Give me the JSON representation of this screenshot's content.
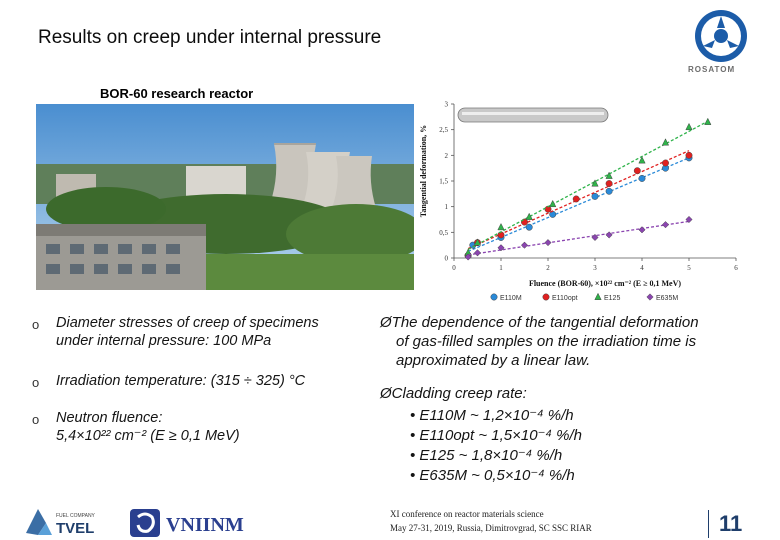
{
  "slide": {
    "title": "Results on creep under internal pressure",
    "logo_text": "ROSATOM",
    "photo_caption": "BOR-60 research reactor"
  },
  "bullets": [
    {
      "marker": "o",
      "lines": [
        "Diameter stresses of creep of specimens",
        "under internal pressure: 100 MPa"
      ]
    },
    {
      "marker": "o",
      "lines": [
        "Irradiation temperature: (315 ÷ 325) °C"
      ]
    },
    {
      "marker": "o",
      "lines": [
        "Neutron fluence:",
        "5,4×10²² cm⁻² (E ≥ 0,1 MeV)"
      ]
    }
  ],
  "right_text": {
    "dependence": [
      "ØThe dependence of the tangential deformation",
      "of gas-filled samples on the irradiation time is",
      "approximated by a linear law."
    ],
    "cladding_heading": "ØCladding creep rate:",
    "rates": [
      "• E110M ~ 1,2×10⁻⁴ %/h",
      "• E110opt ~ 1,5×10⁻⁴ %/h",
      "• E125 ~ 1,8×10⁻⁴ %/h",
      "• E635M ~ 0,5×10⁻⁴ %/h"
    ]
  },
  "footer": {
    "conference": "XI conference on reactor materials science",
    "details": "May 27-31, 2019, Russia, Dimitrovgrad, SC SSC RIAR",
    "page_number": "11",
    "tvel_label": "TVEL",
    "tvel_small": "FUEL COMPANY",
    "vniinm_label": "VNIINM"
  },
  "chart_data": {
    "type": "scatter",
    "title": "",
    "xlabel": "Fluence (BOR-60), ×10²² cm⁻² (E ≥ 0,1 MeV)",
    "ylabel": "Tangential deformation, %",
    "xlim": [
      0,
      6
    ],
    "ylim": [
      0,
      3
    ],
    "x_ticks": [
      "0",
      "1",
      "2",
      "3",
      "4",
      "5",
      "6"
    ],
    "y_ticks": [
      "0",
      "0,5",
      "1",
      "1,5",
      "2",
      "2,5",
      "3"
    ],
    "legend_position": "bottom",
    "series": [
      {
        "name": "E110M",
        "color": "#2a8ad8",
        "marker": "circle",
        "x": [
          0.3,
          0.4,
          1.0,
          1.6,
          2.1,
          3.0,
          3.3,
          4.0,
          4.5,
          5.0
        ],
        "y": [
          0.05,
          0.25,
          0.4,
          0.6,
          0.85,
          1.2,
          1.3,
          1.55,
          1.75,
          1.95
        ]
      },
      {
        "name": "E110opt",
        "color": "#e02020",
        "marker": "circle",
        "x": [
          0.3,
          0.5,
          1.0,
          1.5,
          2.0,
          2.6,
          3.3,
          3.9,
          4.5,
          5.0
        ],
        "y": [
          0.05,
          0.3,
          0.45,
          0.7,
          0.95,
          1.15,
          1.45,
          1.7,
          1.85,
          2.0
        ]
      },
      {
        "name": "E125",
        "color": "#2fb34a",
        "marker": "triangle",
        "x": [
          0.3,
          0.5,
          1.0,
          1.6,
          2.1,
          3.0,
          3.3,
          4.0,
          4.5,
          5.0,
          5.4
        ],
        "y": [
          0.1,
          0.3,
          0.6,
          0.8,
          1.05,
          1.45,
          1.6,
          1.9,
          2.25,
          2.55,
          2.65
        ]
      },
      {
        "name": "E635M",
        "color": "#8b45b0",
        "marker": "diamond",
        "x": [
          0.3,
          0.5,
          1.0,
          1.5,
          2.0,
          3.0,
          3.3,
          4.0,
          4.5,
          5.0
        ],
        "y": [
          0.02,
          0.1,
          0.2,
          0.25,
          0.3,
          0.4,
          0.45,
          0.55,
          0.65,
          0.75
        ]
      }
    ]
  },
  "colors": {
    "title": "#0d0d0d",
    "accent": "#1f3e6b",
    "logo_blue": "#1c5ca8"
  }
}
